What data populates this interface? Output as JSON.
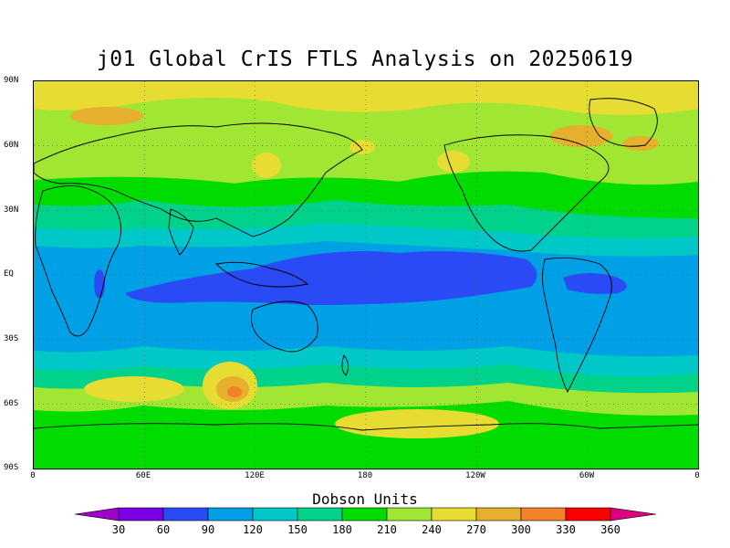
{
  "title": "j01 Global CrIS FTLS Analysis on 20250619",
  "lat_labels": [
    "90N",
    "60N",
    "30N",
    "EQ",
    "30S",
    "60S",
    "90S"
  ],
  "lon_labels": [
    "0",
    "60E",
    "120E",
    "180",
    "120W",
    "60W",
    "0"
  ],
  "colorbar": {
    "title": "Dobson Units",
    "labels": [
      "30",
      "60",
      "90",
      "120",
      "150",
      "180",
      "210",
      "240",
      "270",
      "300",
      "330",
      "360"
    ],
    "colors": [
      "#a000c8",
      "#7a00e6",
      "#2a4af5",
      "#00a0e6",
      "#00c8c8",
      "#00d28c",
      "#00dc00",
      "#a0e632",
      "#e6dc32",
      "#e6af2d",
      "#f08228",
      "#fa0000",
      "#dc0080"
    ]
  },
  "fill_colors": {
    "deep_blue": "#2a4af5",
    "blue": "#00a0e6",
    "cyan": "#00c8c8",
    "teal_green": "#00d28c",
    "green": "#00dc00",
    "light_green": "#a0e632",
    "yellow": "#e6dc32",
    "orange": "#e6af2d",
    "red_orange": "#f08228"
  }
}
